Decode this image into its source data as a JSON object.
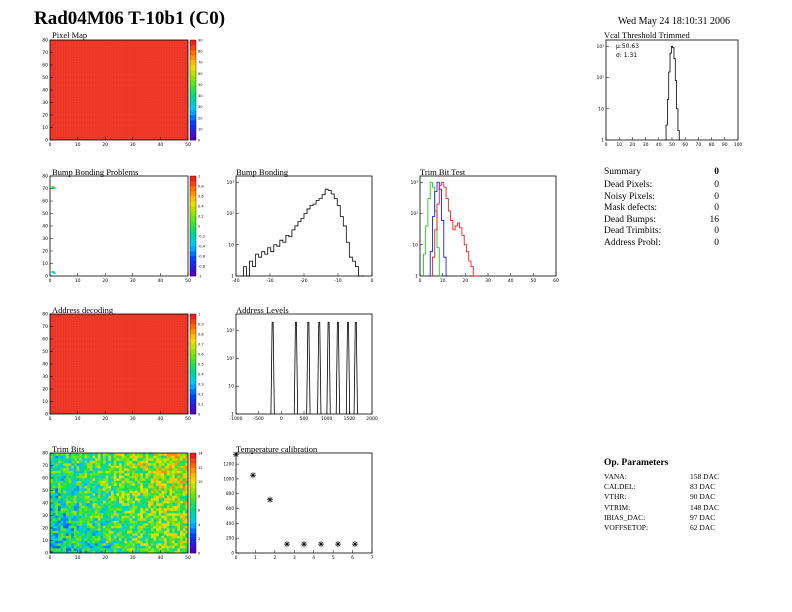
{
  "header": {
    "title": "Rad04M06 T-10b1 (C0)",
    "date": "Wed May 24 18:10:31 2006"
  },
  "summary": {
    "title": "Summary",
    "total": "0",
    "rows": [
      {
        "label": "Dead Pixels:",
        "value": "0"
      },
      {
        "label": "Noisy Pixels:",
        "value": "0"
      },
      {
        "label": "Mask defects:",
        "value": "0"
      },
      {
        "label": "Dead Bumps:",
        "value": "16"
      },
      {
        "label": "Dead Trimbits:",
        "value": "0"
      },
      {
        "label": "Address Probl:",
        "value": "0"
      }
    ]
  },
  "op_params": {
    "title": "Op. Parameters",
    "rows": [
      {
        "label": "VANA:",
        "value": "158 DAC"
      },
      {
        "label": "CALDEL:",
        "value": "83 DAC"
      },
      {
        "label": "VTHR:",
        "value": "90 DAC"
      },
      {
        "label": "VTRIM:",
        "value": "148 DAC"
      },
      {
        "label": "IBIAS_DAC:",
        "value": "97 DAC"
      },
      {
        "label": "VOFFSETOP:",
        "value": "62 DAC"
      }
    ]
  },
  "colors": {
    "frame": "#000000",
    "pixel_map_fill": "#f03a2a",
    "histogram": "#000000",
    "trim_red": "#ff0000",
    "trim_green": "#00cc00",
    "trim_blue": "#0000ff"
  },
  "chart_data": [
    {
      "id": "pixel_map",
      "type": "heatmap",
      "title": "Pixel Map",
      "fill": "uniform-max",
      "xticks": [
        "0",
        "10",
        "20",
        "30",
        "40",
        "50"
      ],
      "yticks": [
        "0",
        "10",
        "20",
        "30",
        "40",
        "50",
        "60",
        "70",
        "80"
      ],
      "zticks": [
        "0",
        "10",
        "20",
        "30",
        "40",
        "50",
        "60",
        "70",
        "80",
        "90"
      ]
    },
    {
      "id": "vcal_threshold",
      "type": "area",
      "title": "Vcal Threshold Trimmed",
      "stats": [
        "µ:50.63",
        "σ: 1.31"
      ],
      "log_y": true,
      "xlim": [
        0,
        100
      ],
      "xticks": [
        "0",
        "10",
        "20",
        "30",
        "40",
        "50",
        "60",
        "70",
        "80",
        "90",
        "100"
      ],
      "yticks": [
        "1",
        "10",
        "10²",
        "10³"
      ],
      "x": [
        45,
        46,
        47,
        48,
        49,
        50,
        51,
        52,
        53,
        54,
        55,
        56
      ],
      "y": [
        1,
        3,
        20,
        150,
        600,
        1000,
        900,
        400,
        80,
        10,
        2,
        1
      ]
    },
    {
      "id": "bump_bonding_problems",
      "type": "heatmap",
      "title": "Bump Bonding Problems",
      "fill": "empty-with-edge-hits",
      "xticks": [
        "0",
        "10",
        "20",
        "30",
        "40",
        "50"
      ],
      "yticks": [
        "0",
        "10",
        "20",
        "30",
        "40",
        "50",
        "60",
        "70",
        "80"
      ],
      "zticks": [
        "-1",
        "-0.8",
        "-0.6",
        "-0.4",
        "-0.2",
        "0",
        "0.2",
        "0.4",
        "0.6",
        "0.8",
        "1"
      ]
    },
    {
      "id": "bump_bonding",
      "type": "area",
      "title": "Bump Bonding",
      "log_y": true,
      "xlim": [
        -40,
        5
      ],
      "xticks": [
        "-40",
        "-30",
        "-20",
        "-10",
        "0"
      ],
      "yticks": [
        "1",
        "10",
        "10²",
        "10³"
      ],
      "x": [
        -38,
        -37,
        -36,
        -35,
        -34,
        -33,
        -32,
        -31,
        -30,
        -29,
        -28,
        -27,
        -26,
        -25,
        -24,
        -23,
        -22,
        -21,
        -20,
        -19,
        -18,
        -17,
        -16,
        -15,
        -14,
        -13,
        -12,
        -11,
        -10,
        -9,
        -8,
        -7,
        -6,
        -5,
        -4,
        -3,
        -2,
        -1,
        0,
        1,
        2
      ],
      "y": [
        1,
        2,
        1,
        3,
        2,
        5,
        4,
        6,
        5,
        8,
        6,
        10,
        9,
        14,
        12,
        20,
        18,
        30,
        40,
        55,
        70,
        100,
        140,
        180,
        200,
        260,
        300,
        400,
        600,
        550,
        420,
        300,
        180,
        80,
        40,
        12,
        4,
        3,
        2,
        1,
        1
      ]
    },
    {
      "id": "trim_bit_test",
      "type": "line",
      "title": "Trim Bit Test",
      "log_y": true,
      "xlim": [
        0,
        60
      ],
      "xticks": [
        "0",
        "10",
        "20",
        "30",
        "40",
        "50",
        "60"
      ],
      "yticks": [
        "1",
        "10",
        "10²",
        "10³"
      ],
      "series": [
        {
          "color": "green",
          "x": [
            1,
            2,
            3,
            4,
            5,
            6,
            7,
            8,
            9
          ],
          "y": [
            1,
            5,
            40,
            300,
            1000,
            700,
            120,
            8,
            1
          ]
        },
        {
          "color": "blue",
          "x": [
            4,
            5,
            6,
            7,
            8,
            9,
            10,
            11,
            12
          ],
          "y": [
            1,
            6,
            80,
            500,
            1000,
            600,
            60,
            4,
            1
          ]
        },
        {
          "color": "red",
          "x": [
            5,
            6,
            7,
            8,
            9,
            10,
            11,
            12,
            13,
            14,
            15,
            16,
            17,
            18,
            19,
            20,
            21,
            22,
            23,
            24,
            25,
            26
          ],
          "y": [
            1,
            4,
            30,
            200,
            800,
            1000,
            700,
            300,
            120,
            60,
            30,
            40,
            50,
            35,
            20,
            10,
            6,
            3,
            2,
            1,
            1,
            1
          ]
        }
      ]
    },
    {
      "id": "address_decoding",
      "type": "heatmap",
      "title": "Address decoding",
      "fill": "uniform-max",
      "xticks": [
        "0",
        "10",
        "20",
        "30",
        "40",
        "50"
      ],
      "yticks": [
        "0",
        "10",
        "20",
        "30",
        "40",
        "50",
        "60",
        "70",
        "80"
      ],
      "zticks": [
        "0",
        "0.1",
        "0.2",
        "0.3",
        "0.4",
        "0.5",
        "0.6",
        "0.7",
        "0.8",
        "0.9",
        "1"
      ]
    },
    {
      "id": "address_levels",
      "type": "area",
      "title": "Address Levels",
      "log_y": true,
      "xlim": [
        -1500,
        2000
      ],
      "xticks": [
        "-1000",
        "-500",
        "0",
        "500",
        "1000",
        "1500",
        "2000"
      ],
      "yticks": [
        "1",
        "10",
        "10²",
        "10³"
      ],
      "peaks": [
        -560,
        40,
        360,
        640,
        880,
        1120,
        1380,
        1580
      ],
      "peak_height": 2000
    },
    {
      "id": "trim_bits",
      "type": "heatmap",
      "title": "Trim Bits",
      "fill": "noisy-mid",
      "xticks": [
        "0",
        "10",
        "20",
        "30",
        "40",
        "50"
      ],
      "yticks": [
        "0",
        "10",
        "20",
        "30",
        "40",
        "50",
        "60",
        "70",
        "80"
      ],
      "zticks": [
        "0",
        "2",
        "4",
        "6",
        "8",
        "10",
        "12",
        "14"
      ]
    },
    {
      "id": "temperature_calibration",
      "type": "scatter",
      "title": "Temperature calibration",
      "xticks": [
        "0",
        "1",
        "2",
        "3",
        "4",
        "5",
        "6",
        "7"
      ],
      "yticks": [
        "0",
        "200",
        "400",
        "600",
        "800",
        "1000",
        "1200"
      ],
      "ylim": [
        0,
        1350
      ],
      "xlim": [
        0,
        8
      ],
      "x": [
        0,
        1,
        2,
        3,
        4,
        5,
        6,
        7
      ],
      "y": [
        1330,
        1050,
        720,
        120,
        120,
        120,
        120,
        120
      ]
    }
  ]
}
